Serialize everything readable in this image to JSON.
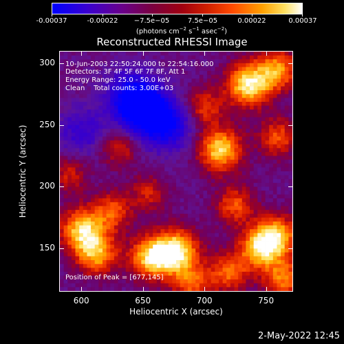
{
  "colorbar": {
    "tick_labels": [
      "-0.00037",
      "-0.00022",
      "−7.5e−05",
      "7.5e−05",
      "0.00022",
      "0.00037"
    ],
    "tick_values": [
      -0.00037,
      -0.00022,
      -7.5e-05,
      7.5e-05,
      0.00022,
      0.00037
    ],
    "range": [
      -0.00037,
      0.00037
    ],
    "unit_main": "(photons cm",
    "unit_exp1": "−2",
    "unit_s": " s",
    "unit_exp2": "−1",
    "unit_asec": " asec",
    "unit_exp3": "−2",
    "unit_close": ")"
  },
  "chart_data": {
    "type": "heatmap",
    "title": "Reconstructed RHESSI Image",
    "xlabel": "Heliocentric X (arcsec)",
    "ylabel": "Heliocentric Y (arcsec)",
    "xlim": [
      582,
      772
    ],
    "ylim": [
      115,
      310
    ],
    "x_ticks": [
      600,
      650,
      700,
      750
    ],
    "y_ticks": [
      150,
      200,
      250,
      300
    ],
    "peak": [
      677,
      145
    ],
    "hotspots": [
      {
        "x": 677,
        "y": 147,
        "intensity": 1.0
      },
      {
        "x": 736,
        "y": 283,
        "intensity": 0.95
      },
      {
        "x": 713,
        "y": 230,
        "intensity": 0.9
      },
      {
        "x": 760,
        "y": 160,
        "intensity": 0.75
      },
      {
        "x": 745,
        "y": 150,
        "intensity": 0.8
      },
      {
        "x": 600,
        "y": 165,
        "intensity": 0.85
      },
      {
        "x": 612,
        "y": 145,
        "intensity": 0.75
      },
      {
        "x": 655,
        "y": 142,
        "intensity": 0.8
      },
      {
        "x": 625,
        "y": 180,
        "intensity": 0.55
      },
      {
        "x": 760,
        "y": 295,
        "intensity": 0.7
      },
      {
        "x": 725,
        "y": 185,
        "intensity": 0.55
      },
      {
        "x": 700,
        "y": 265,
        "intensity": 0.5
      },
      {
        "x": 760,
        "y": 240,
        "intensity": 0.55
      },
      {
        "x": 630,
        "y": 232,
        "intensity": 0.45
      },
      {
        "x": 655,
        "y": 195,
        "intensity": 0.4
      },
      {
        "x": 590,
        "y": 210,
        "intensity": 0.4
      },
      {
        "x": 720,
        "y": 130,
        "intensity": 0.6
      },
      {
        "x": 765,
        "y": 125,
        "intensity": 0.65
      },
      {
        "x": 690,
        "y": 120,
        "intensity": 0.55
      }
    ],
    "coldspots": [
      {
        "x": 650,
        "y": 262,
        "intensity": -0.9
      },
      {
        "x": 670,
        "y": 250,
        "intensity": -0.7
      },
      {
        "x": 640,
        "y": 275,
        "intensity": -0.6
      },
      {
        "x": 600,
        "y": 245,
        "intensity": -0.4
      }
    ]
  },
  "annotations": {
    "line1": "10-Jun-2003 22:50:24.000 to 22:54:16.000",
    "line2": "Detectors: 3F 4F 5F 6F 7F 8F, Att 1",
    "line3": "Energy Range: 25.0 - 50.0 keV",
    "line4": "Clean    Total counts: 3.00E+03",
    "peak_label": "Position of Peak = [677,145]"
  },
  "timestamp": "2-May-2022 12:45",
  "colors": {
    "background": "#000000",
    "text": "#ffffff"
  }
}
